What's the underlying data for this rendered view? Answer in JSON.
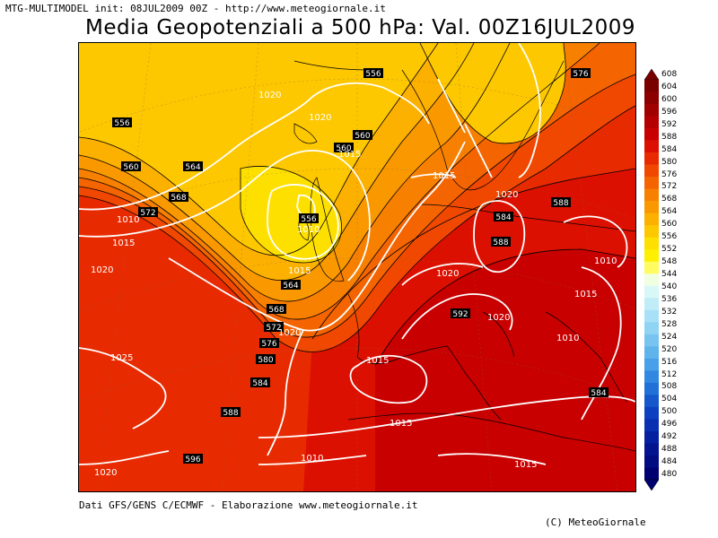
{
  "header": {
    "subtitle": "MTG-MULTIMODEL init: 08JUL2009 00Z - http://www.meteogiornale.it",
    "title": "Media Geopotenziali a 500 hPa: Val. 00Z16JUL2009"
  },
  "footer": {
    "source": "Dati GFS/GENS C/ECMWF - Elaborazione www.meteogiornale.it",
    "copyright": "(C) MeteoGiornale"
  },
  "legend": {
    "levels": [
      "608",
      "604",
      "600",
      "596",
      "592",
      "588",
      "584",
      "580",
      "576",
      "572",
      "568",
      "564",
      "560",
      "556",
      "552",
      "548",
      "544",
      "540",
      "536",
      "532",
      "528",
      "524",
      "520",
      "516",
      "512",
      "508",
      "504",
      "500",
      "496",
      "492",
      "488",
      "484",
      "480"
    ],
    "colors": [
      "#7a0000",
      "#8c0000",
      "#a00000",
      "#b40000",
      "#c80000",
      "#dc1000",
      "#e82a00",
      "#f04800",
      "#f46400",
      "#f88000",
      "#fa9800",
      "#fcb000",
      "#fdc800",
      "#fee000",
      "#fef000",
      "#fefc60",
      "#f0ffe0",
      "#d8f8f8",
      "#c0ecf8",
      "#a8e0f8",
      "#90d4f4",
      "#78c4f0",
      "#60b4ec",
      "#48a0e8",
      "#3088e0",
      "#2070d8",
      "#1458cc",
      "#0c40c0",
      "#0830b0",
      "#0420a0",
      "#021490",
      "#000c80",
      "#000070"
    ]
  },
  "map": {
    "geopotential_labels": [
      "556",
      "560",
      "560",
      "564",
      "568",
      "572",
      "576",
      "580",
      "584",
      "588",
      "592",
      "596",
      "556",
      "560",
      "564",
      "568",
      "572",
      "576",
      "580",
      "584",
      "588",
      "592",
      "584",
      "588",
      "576",
      "584"
    ],
    "pressure_labels": [
      "1020",
      "1020",
      "1015",
      "1010",
      "1015",
      "1020",
      "1010",
      "1015",
      "1020",
      "1025",
      "1015",
      "1020",
      "1015",
      "1010",
      "1015",
      "1010",
      "1020",
      "1010",
      "1015",
      "1015",
      "1020",
      "1020"
    ]
  }
}
